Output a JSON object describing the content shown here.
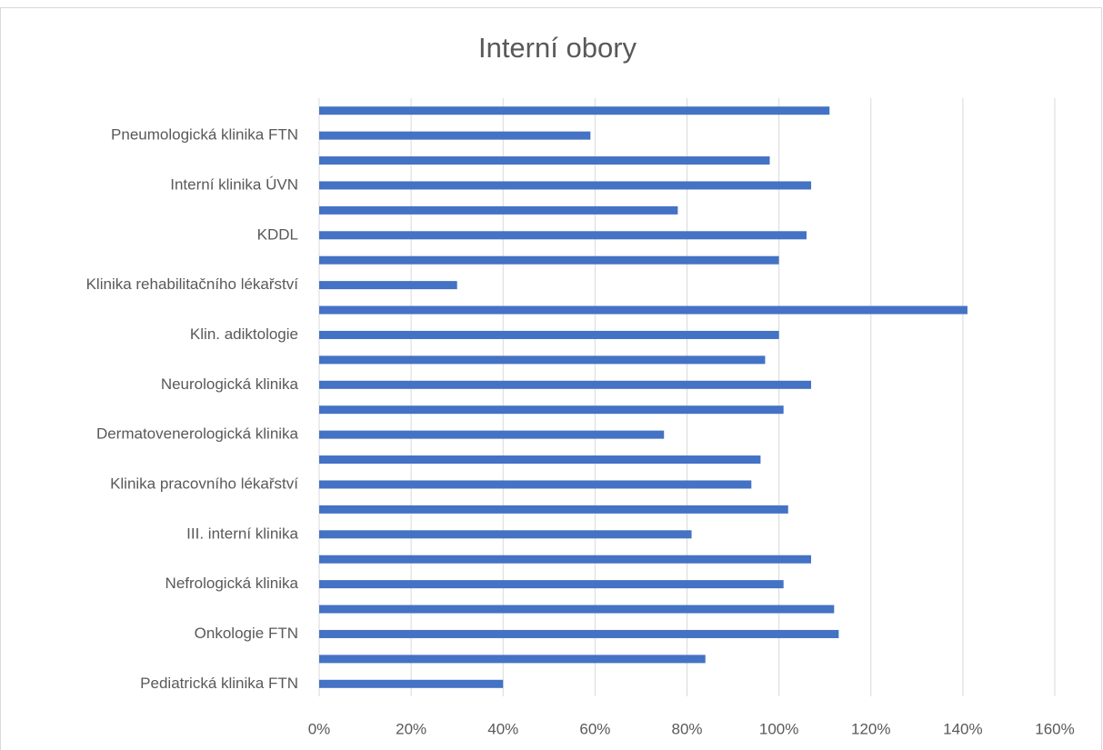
{
  "chart_data": {
    "type": "barh",
    "title": "Interní obory",
    "categories": [
      null,
      "Pneumologická klinika FTN",
      null,
      "Interní klinika ÚVN",
      null,
      "KDDL",
      null,
      "Klinika rehabilitačního lékařství",
      null,
      "Klin. adiktologie",
      null,
      "Neurologická klinika",
      null,
      "Dermatovenerologická klinika",
      null,
      "Klinika pracovního lékařství",
      null,
      "III. interní klinika",
      null,
      "Nefrologická klinika",
      null,
      "Onkologie FTN",
      null,
      "Pediatrická klinika FTN"
    ],
    "values": [
      111,
      59,
      98,
      107,
      78,
      106,
      100,
      30,
      141,
      100,
      97,
      107,
      101,
      75,
      96,
      94,
      102,
      81,
      107,
      101,
      112,
      113,
      84,
      40
    ],
    "color": "#4472c4",
    "xlim": [
      0,
      160
    ],
    "xticks": [
      {
        "value": 0,
        "label": "0%"
      },
      {
        "value": 20,
        "label": "20%"
      },
      {
        "value": 40,
        "label": "40%"
      },
      {
        "value": 60,
        "label": "60%"
      },
      {
        "value": 80,
        "label": "80%"
      },
      {
        "value": 100,
        "label": "100%"
      },
      {
        "value": 120,
        "label": "120%"
      },
      {
        "value": 140,
        "label": "140%"
      },
      {
        "value": 160,
        "label": "160%"
      }
    ],
    "grid": true
  }
}
